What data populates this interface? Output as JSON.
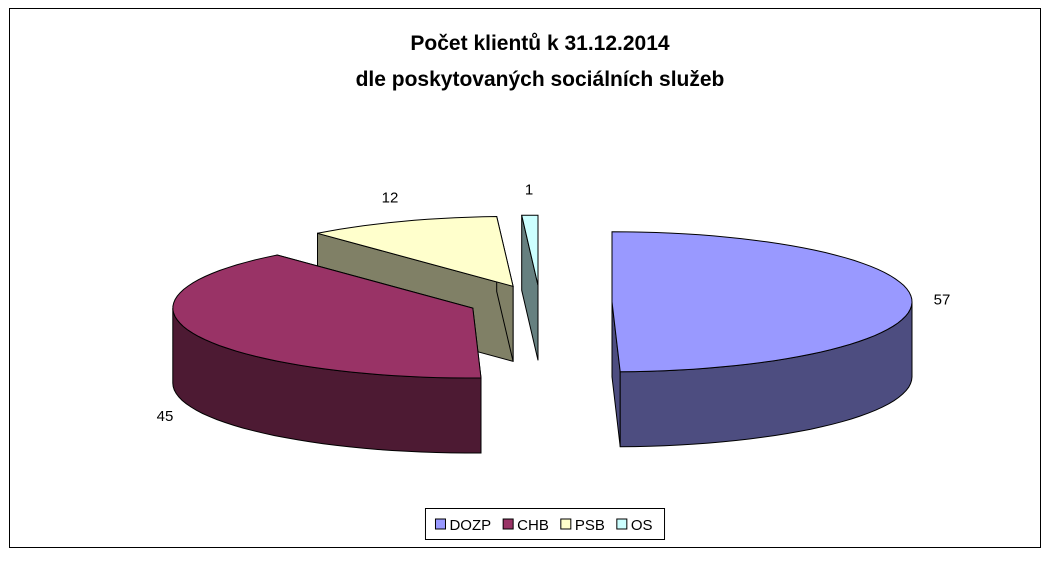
{
  "chart_data": {
    "type": "pie",
    "title": [
      "Počet klientů k 31.12.2014",
      "dle poskytovaných sociálních služeb"
    ],
    "categories": [
      "DOZP",
      "CHB",
      "PSB",
      "OS"
    ],
    "values": [
      57,
      45,
      12,
      1
    ],
    "colors": [
      "#9999ff",
      "#993366",
      "#ffffcc",
      "#ccffff"
    ],
    "legend": "bottom"
  }
}
